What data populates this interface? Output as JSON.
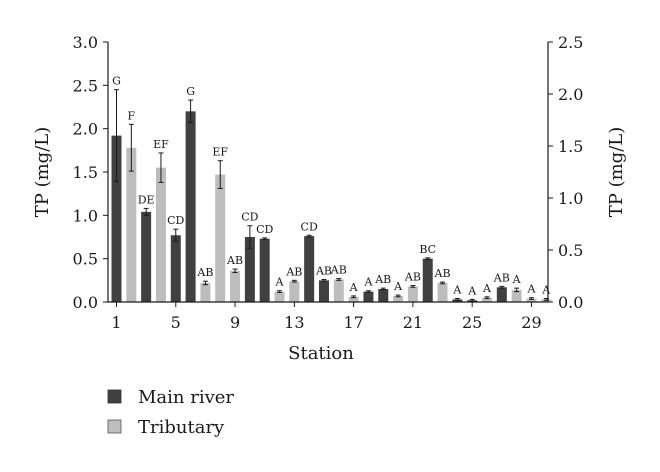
{
  "chart_data": {
    "type": "bar",
    "xlabel": "Station",
    "ylabel": "TP (mg/L)",
    "ylabel_right": "TP (mg/L)",
    "ylim": [
      0,
      3.0
    ],
    "ylim_right": [
      0,
      2.5
    ],
    "yticks": [
      "0.0",
      "0.5",
      "1.0",
      "1.5",
      "2.0",
      "2.5",
      "3.0"
    ],
    "yticks_right": [
      "0.0",
      "0.5",
      "1.0",
      "1.5",
      "2.0",
      "2.5"
    ],
    "xticks": [
      "1",
      "5",
      "9",
      "13",
      "17",
      "21",
      "25",
      "29"
    ],
    "grid": false,
    "legend_position": "bottom-left",
    "colors": {
      "main_river": "#404040",
      "tributary": "#bdbdbd"
    },
    "series": [
      {
        "name": "Main river",
        "color": "#404040"
      },
      {
        "name": "Tributary",
        "color": "#bdbdbd"
      }
    ],
    "bars": [
      {
        "station": 1,
        "series": "Main river",
        "value": 1.92,
        "error": 0.53,
        "label": "G"
      },
      {
        "station": 2,
        "series": "Tributary",
        "value": 1.78,
        "error": 0.27,
        "label": "F"
      },
      {
        "station": 3,
        "series": "Main river",
        "value": 1.04,
        "error": 0.04,
        "label": "DE"
      },
      {
        "station": 4,
        "series": "Tributary",
        "value": 1.55,
        "error": 0.17,
        "label": "EF"
      },
      {
        "station": 5,
        "series": "Main river",
        "value": 0.77,
        "error": 0.07,
        "label": "CD"
      },
      {
        "station": 6,
        "series": "Main river",
        "value": 2.2,
        "error": 0.13,
        "label": "G"
      },
      {
        "station": 7,
        "series": "Tributary",
        "value": 0.22,
        "error": 0.02,
        "label": "AB"
      },
      {
        "station": 8,
        "series": "Tributary",
        "value": 1.47,
        "error": 0.16,
        "label": "EF"
      },
      {
        "station": 9,
        "series": "Tributary",
        "value": 0.36,
        "error": 0.02,
        "label": "AB"
      },
      {
        "station": 10,
        "series": "Main river",
        "value": 0.75,
        "error": 0.13,
        "label": "CD"
      },
      {
        "station": 11,
        "series": "Main river",
        "value": 0.73,
        "error": 0.01,
        "label": "CD"
      },
      {
        "station": 12,
        "series": "Tributary",
        "value": 0.12,
        "error": 0.01,
        "label": "A"
      },
      {
        "station": 13,
        "series": "Tributary",
        "value": 0.24,
        "error": 0.01,
        "label": "AB"
      },
      {
        "station": 14,
        "series": "Main river",
        "value": 0.76,
        "error": 0.01,
        "label": "CD"
      },
      {
        "station": 15,
        "series": "Main river",
        "value": 0.25,
        "error": 0.01,
        "label": "AB"
      },
      {
        "station": 16,
        "series": "Tributary",
        "value": 0.26,
        "error": 0.01,
        "label": "AB"
      },
      {
        "station": 17,
        "series": "Tributary",
        "value": 0.06,
        "error": 0.01,
        "label": "A"
      },
      {
        "station": 18,
        "series": "Main river",
        "value": 0.12,
        "error": 0.01,
        "label": "A"
      },
      {
        "station": 19,
        "series": "Main river",
        "value": 0.15,
        "error": 0.01,
        "label": "AB"
      },
      {
        "station": 20,
        "series": "Tributary",
        "value": 0.07,
        "error": 0.01,
        "label": "A"
      },
      {
        "station": 21,
        "series": "Tributary",
        "value": 0.18,
        "error": 0.01,
        "label": "AB"
      },
      {
        "station": 22,
        "series": "Main river",
        "value": 0.5,
        "error": 0.01,
        "label": "BC"
      },
      {
        "station": 23,
        "series": "Tributary",
        "value": 0.22,
        "error": 0.01,
        "label": "AB"
      },
      {
        "station": 24,
        "series": "Main river",
        "value": 0.03,
        "error": 0.01,
        "label": "A"
      },
      {
        "station": 25,
        "series": "Main river",
        "value": 0.02,
        "error": 0.01,
        "label": "A"
      },
      {
        "station": 26,
        "series": "Tributary",
        "value": 0.05,
        "error": 0.01,
        "label": "A"
      },
      {
        "station": 27,
        "series": "Main river",
        "value": 0.17,
        "error": 0.01,
        "label": "AB"
      },
      {
        "station": 28,
        "series": "Tributary",
        "value": 0.14,
        "error": 0.02,
        "label": "A"
      },
      {
        "station": 29,
        "series": "Tributary",
        "value": 0.04,
        "error": 0.01,
        "label": "A"
      },
      {
        "station": 30,
        "series": "Tributary",
        "value": 0.03,
        "error": 0.01,
        "label": "A"
      }
    ]
  }
}
